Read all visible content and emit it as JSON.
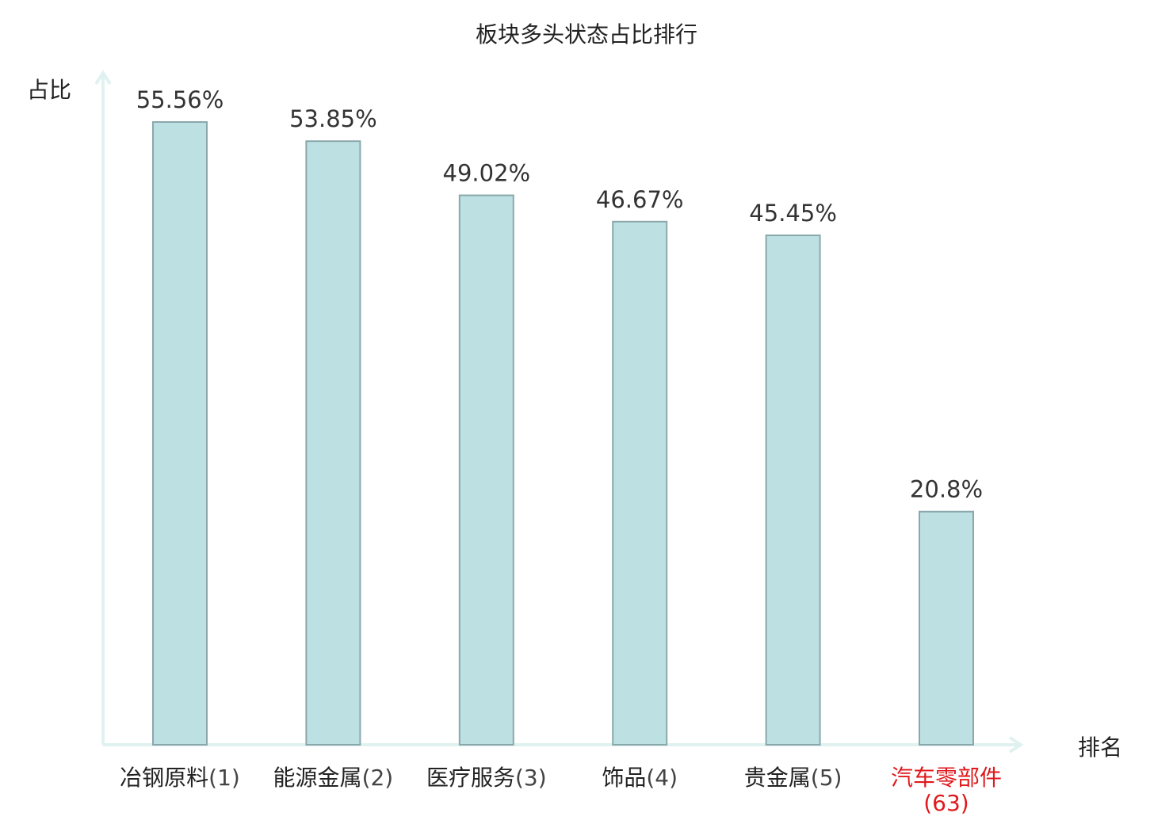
{
  "chart_data": {
    "type": "bar",
    "title": "板块多头状态占比排行",
    "ylabel": "占比",
    "xlabel": "排名",
    "categories": [
      "冶钢原料(1)",
      "能源金属(2)",
      "医疗服务(3)",
      "饰品(4)",
      "贵金属(5)",
      "汽车零部件(63)"
    ],
    "values": [
      55.56,
      53.85,
      49.02,
      46.67,
      45.45,
      20.8
    ],
    "value_labels": [
      "55.56%",
      "53.85%",
      "49.02%",
      "46.67%",
      "45.45%",
      "20.8%"
    ],
    "highlight_index": 5,
    "ylim": [
      0,
      55.56
    ],
    "grid": false,
    "colors": {
      "bar_fill": "#bde0e3",
      "bar_stroke": "#8aa8ab",
      "axis": "#e0f2f0",
      "highlight_label": "#e0191d",
      "text": "#222222"
    }
  }
}
